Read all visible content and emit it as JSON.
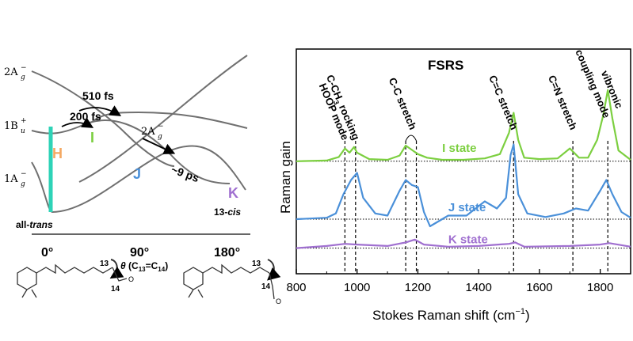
{
  "pes": {
    "states": [
      {
        "main": "2A",
        "sup": "−",
        "sub": "g"
      },
      {
        "main": "1B",
        "sup": "+",
        "sub": "u"
      },
      {
        "main": "1A",
        "sup": "−",
        "sub": "g"
      }
    ],
    "mid_state": {
      "main": "2A",
      "sup": "−",
      "sub": "g"
    },
    "times": {
      "t200": "200 fs",
      "t510": "510 fs",
      "t9ps": "~9 ps"
    },
    "letters": {
      "H": "H",
      "I": "I",
      "J": "J",
      "K": "K"
    },
    "endpoints": {
      "all_trans_pre": "all-",
      "all_trans_it": "trans",
      "cis_pre": "13-",
      "cis_it": "cis"
    },
    "ticks": [
      "0°",
      "90°",
      "180°"
    ],
    "xlabel_theta": "θ",
    "xlabel_rest": " (C",
    "xlabel_13": "13",
    "xlabel_eq": "=C",
    "xlabel_14": "14",
    "xlabel_end": ")",
    "molecule_atoms": {
      "c13": "13",
      "c14": "14",
      "o": "O"
    },
    "colors": {
      "H": "#f4a862",
      "I": "#7ccf40",
      "J": "#4a90d9",
      "K": "#a070d0",
      "bar": "#2ed3b7",
      "curve": "#707070"
    }
  },
  "chart_data": {
    "type": "line",
    "title": "FSRS",
    "xlabel_main": "Stokes Raman shift (cm",
    "xlabel_sup": "−1",
    "xlabel_end": ")",
    "ylabel": "Raman gain",
    "xlim": [
      800,
      1900
    ],
    "xticks": [
      800,
      1000,
      1200,
      1400,
      1600,
      1800
    ],
    "series": [
      {
        "name": "I state",
        "color": "#7ccf40",
        "baseline": 0.55,
        "points": [
          [
            800,
            0
          ],
          [
            900,
            0.01
          ],
          [
            940,
            0.06
          ],
          [
            960,
            0.18
          ],
          [
            975,
            0.12
          ],
          [
            990,
            0.2
          ],
          [
            1000,
            0.12
          ],
          [
            1040,
            0.03
          ],
          [
            1100,
            0.02
          ],
          [
            1140,
            0.08
          ],
          [
            1160,
            0.22
          ],
          [
            1180,
            0.16
          ],
          [
            1200,
            0.1
          ],
          [
            1230,
            0.05
          ],
          [
            1280,
            0.02
          ],
          [
            1350,
            0.02
          ],
          [
            1420,
            0.04
          ],
          [
            1470,
            0.1
          ],
          [
            1500,
            0.4
          ],
          [
            1515,
            0.68
          ],
          [
            1530,
            0.3
          ],
          [
            1550,
            0.05
          ],
          [
            1600,
            0.03
          ],
          [
            1660,
            0.04
          ],
          [
            1700,
            0.18
          ],
          [
            1730,
            0.05
          ],
          [
            1760,
            0.05
          ],
          [
            1790,
            0.3
          ],
          [
            1810,
            0.65
          ],
          [
            1825,
            1.0
          ],
          [
            1840,
            0.6
          ],
          [
            1860,
            0.15
          ],
          [
            1900,
            0.02
          ]
        ]
      },
      {
        "name": "J state",
        "color": "#4a90d9",
        "baseline": 0.25,
        "points": [
          [
            800,
            0
          ],
          [
            900,
            0.02
          ],
          [
            930,
            0.08
          ],
          [
            955,
            0.35
          ],
          [
            980,
            0.55
          ],
          [
            1000,
            0.65
          ],
          [
            1020,
            0.3
          ],
          [
            1060,
            0.08
          ],
          [
            1100,
            0.05
          ],
          [
            1140,
            0.4
          ],
          [
            1160,
            0.55
          ],
          [
            1180,
            0.48
          ],
          [
            1200,
            0.45
          ],
          [
            1220,
            0.1
          ],
          [
            1240,
            -0.1
          ],
          [
            1260,
            -0.05
          ],
          [
            1300,
            0.05
          ],
          [
            1360,
            0.05
          ],
          [
            1420,
            0.25
          ],
          [
            1460,
            0.15
          ],
          [
            1490,
            0.3
          ],
          [
            1505,
            0.9
          ],
          [
            1515,
            1.05
          ],
          [
            1530,
            0.35
          ],
          [
            1560,
            0.08
          ],
          [
            1620,
            0.03
          ],
          [
            1680,
            0.08
          ],
          [
            1720,
            0.15
          ],
          [
            1760,
            0.12
          ],
          [
            1800,
            0.4
          ],
          [
            1820,
            0.55
          ],
          [
            1840,
            0.35
          ],
          [
            1870,
            0.1
          ],
          [
            1900,
            0.02
          ]
        ]
      },
      {
        "name": "K state",
        "color": "#a070d0",
        "baseline": 0.1,
        "points": [
          [
            800,
            0
          ],
          [
            900,
            0.03
          ],
          [
            960,
            0.06
          ],
          [
            1000,
            0.05
          ],
          [
            1100,
            0.03
          ],
          [
            1160,
            0.08
          ],
          [
            1190,
            0.12
          ],
          [
            1220,
            0.05
          ],
          [
            1300,
            0.02
          ],
          [
            1400,
            0.03
          ],
          [
            1500,
            0.06
          ],
          [
            1520,
            0.08
          ],
          [
            1550,
            0.02
          ],
          [
            1700,
            0.03
          ],
          [
            1800,
            0.05
          ],
          [
            1830,
            0.07
          ],
          [
            1900,
            0.02
          ]
        ]
      }
    ],
    "markers": [
      {
        "x": 960,
        "label": "HOOP mode"
      },
      {
        "x": 995,
        "label_main": "C-CH",
        "label_sub": "3",
        "label_end": " rocking"
      },
      {
        "x": 1160,
        "label": "C-C stretch"
      },
      {
        "x": 1195
      },
      {
        "x": 1515,
        "label": "C=C stretch"
      },
      {
        "x": 1710,
        "label": "C=N stretch"
      },
      {
        "x": 1825,
        "label": "vibronic coupling mode"
      }
    ]
  }
}
